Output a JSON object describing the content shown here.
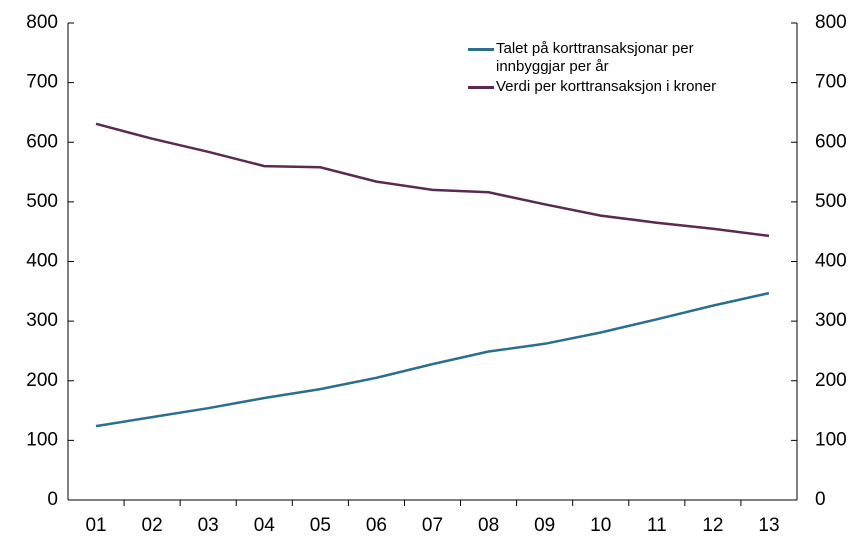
{
  "chart_data": {
    "type": "line",
    "categories": [
      "01",
      "02",
      "03",
      "04",
      "05",
      "06",
      "07",
      "08",
      "09",
      "10",
      "11",
      "12",
      "13"
    ],
    "series": [
      {
        "name": "Talet på korttransaksjonar per innbyggjar per år",
        "color": "#2b6f8f",
        "values": [
          124,
          139,
          154,
          171,
          186,
          205,
          228,
          249,
          262,
          281,
          303,
          326,
          347
        ]
      },
      {
        "name": "Verdi per korttransaksjon i kroner",
        "color": "#5a2a50",
        "values": [
          631,
          606,
          584,
          560,
          558,
          534,
          520,
          516,
          496,
          477,
          465,
          455,
          443
        ]
      }
    ],
    "ylim": [
      0,
      800
    ],
    "yticks": [
      0,
      100,
      200,
      300,
      400,
      500,
      600,
      700,
      800
    ],
    "y2lim": [
      0,
      800
    ],
    "y2ticks": [
      0,
      100,
      200,
      300,
      400,
      500,
      600,
      700,
      800
    ],
    "legend": "upper right"
  }
}
